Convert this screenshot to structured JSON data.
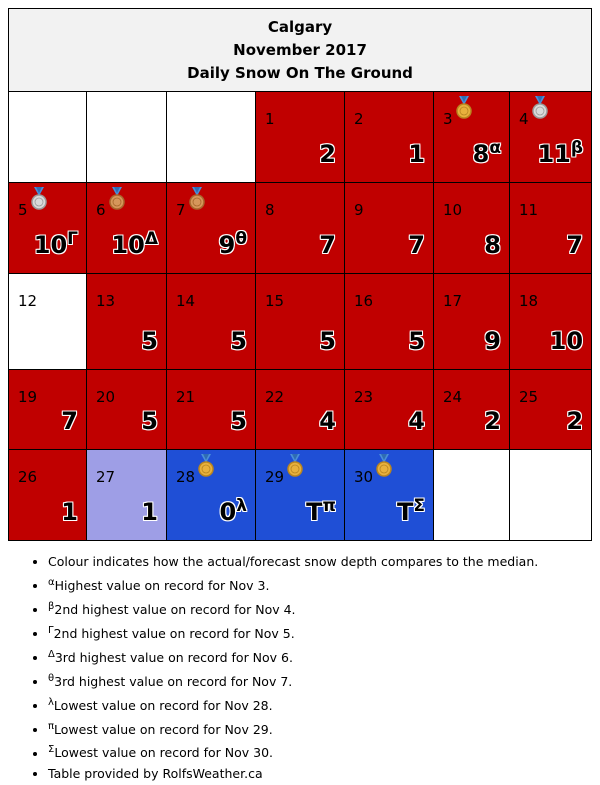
{
  "header": {
    "city": "Calgary",
    "month": "November 2017",
    "subtitle": "Daily Snow On The Ground"
  },
  "colors": {
    "above_median": "#c00000",
    "below_median": "#1f4fd6",
    "near_median": "#9e9ee6",
    "no_data": "#ffffff",
    "header_bg": "#f2f2f2"
  },
  "weeks": [
    [
      {
        "empty": true
      },
      {
        "empty": true
      },
      {
        "empty": true
      },
      {
        "day": "1",
        "value": "2",
        "sup": "",
        "status": "above_median",
        "medal": ""
      },
      {
        "day": "2",
        "value": "1",
        "sup": "",
        "status": "above_median",
        "medal": ""
      },
      {
        "day": "3",
        "value": "8",
        "sup": "α",
        "status": "above_median",
        "medal": "gold-medal"
      },
      {
        "day": "4",
        "value": "11",
        "sup": "β",
        "status": "above_median",
        "medal": "silver-medal"
      }
    ],
    [
      {
        "day": "5",
        "value": "10",
        "sup": "Γ",
        "status": "above_median",
        "medal": "silver-medal"
      },
      {
        "day": "6",
        "value": "10",
        "sup": "Δ",
        "status": "above_median",
        "medal": "bronze-medal"
      },
      {
        "day": "7",
        "value": "9",
        "sup": "θ",
        "status": "above_median",
        "medal": "bronze-medal"
      },
      {
        "day": "8",
        "value": "7",
        "sup": "",
        "status": "above_median",
        "medal": ""
      },
      {
        "day": "9",
        "value": "7",
        "sup": "",
        "status": "above_median",
        "medal": ""
      },
      {
        "day": "10",
        "value": "8",
        "sup": "",
        "status": "above_median",
        "medal": ""
      },
      {
        "day": "11",
        "value": "7",
        "sup": "",
        "status": "above_median",
        "medal": ""
      }
    ],
    [
      {
        "day": "12",
        "value": "",
        "sup": "",
        "status": "no_data",
        "medal": ""
      },
      {
        "day": "13",
        "value": "5",
        "sup": "",
        "status": "above_median",
        "medal": ""
      },
      {
        "day": "14",
        "value": "5",
        "sup": "",
        "status": "above_median",
        "medal": ""
      },
      {
        "day": "15",
        "value": "5",
        "sup": "",
        "status": "above_median",
        "medal": ""
      },
      {
        "day": "16",
        "value": "5",
        "sup": "",
        "status": "above_median",
        "medal": ""
      },
      {
        "day": "17",
        "value": "9",
        "sup": "",
        "status": "above_median",
        "medal": ""
      },
      {
        "day": "18",
        "value": "10",
        "sup": "",
        "status": "above_median",
        "medal": ""
      }
    ],
    [
      {
        "day": "19",
        "value": "7",
        "sup": "",
        "status": "above_median",
        "medal": ""
      },
      {
        "day": "20",
        "value": "5",
        "sup": "",
        "status": "above_median",
        "medal": ""
      },
      {
        "day": "21",
        "value": "5",
        "sup": "",
        "status": "above_median",
        "medal": ""
      },
      {
        "day": "22",
        "value": "4",
        "sup": "",
        "status": "above_median",
        "medal": ""
      },
      {
        "day": "23",
        "value": "4",
        "sup": "",
        "status": "above_median",
        "medal": ""
      },
      {
        "day": "24",
        "value": "2",
        "sup": "",
        "status": "above_median",
        "medal": ""
      },
      {
        "day": "25",
        "value": "2",
        "sup": "",
        "status": "above_median",
        "medal": ""
      }
    ],
    [
      {
        "day": "26",
        "value": "1",
        "sup": "",
        "status": "above_median",
        "medal": ""
      },
      {
        "day": "27",
        "value": "1",
        "sup": "",
        "status": "near_median",
        "medal": ""
      },
      {
        "day": "28",
        "value": "0",
        "sup": "λ",
        "status": "below_median",
        "medal": "gold-medal"
      },
      {
        "day": "29",
        "value": "T",
        "sup": "π",
        "status": "below_median",
        "medal": "gold-medal"
      },
      {
        "day": "30",
        "value": "T",
        "sup": "Σ",
        "status": "below_median",
        "medal": "gold-medal"
      },
      {
        "empty": true
      },
      {
        "empty": true
      }
    ]
  ],
  "legend": [
    {
      "sup": "",
      "text": "Colour indicates how the actual/forecast snow depth compares to the median."
    },
    {
      "sup": "α",
      "text": "Highest value on record for Nov 3."
    },
    {
      "sup": "β",
      "text": "2nd highest value on record for Nov 4."
    },
    {
      "sup": "Γ",
      "text": "2nd highest value on record for Nov 5."
    },
    {
      "sup": "Δ",
      "text": "3rd highest value on record for Nov 6."
    },
    {
      "sup": "θ",
      "text": "3rd highest value on record for Nov 7."
    },
    {
      "sup": "λ",
      "text": "Lowest value on record for Nov 28."
    },
    {
      "sup": "π",
      "text": "Lowest value on record for Nov 29."
    },
    {
      "sup": "Σ",
      "text": "Lowest value on record for Nov 30."
    },
    {
      "sup": "",
      "text": "Table provided by RolfsWeather.ca"
    }
  ]
}
